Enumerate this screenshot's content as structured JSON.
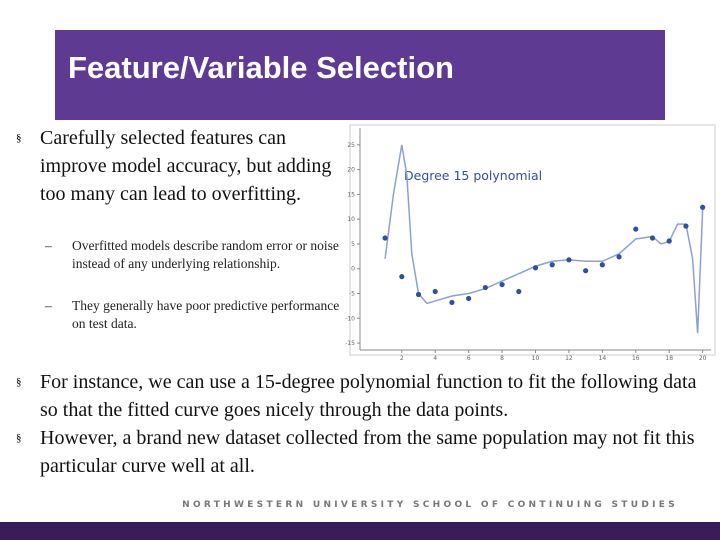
{
  "header": {
    "title": "Feature/Variable Selection"
  },
  "bullets": [
    {
      "text": "Carefully selected features can improve model accuracy, but adding too many can lead to overfitting.",
      "sub": [
        "Overfitted models describe random error or noise instead of any underlying relationship.",
        "They generally have poor predictive performance on test data."
      ]
    },
    {
      "text": "For instance, we can use a 15-degree polynomial function to fit the following data so that the fitted curve goes nicely through the data points."
    },
    {
      "text": "However, a brand new dataset collected from the same population may not fit this particular curve well at all."
    }
  ],
  "figure": {
    "type": "scatter",
    "title": "Degree 15 polynomial",
    "x": [
      1,
      2,
      3,
      4,
      5,
      6,
      7,
      8,
      9,
      10,
      11,
      12,
      13,
      14,
      15,
      16,
      17,
      18,
      19,
      20
    ],
    "values": [
      6.2,
      -1.6,
      -5.2,
      -4.6,
      -6.8,
      -6,
      -3.8,
      -3.2,
      -4.6,
      0.2,
      0.8,
      1.8,
      -0.4,
      0.8,
      2.4,
      8,
      6.2,
      5.6,
      8.6,
      12.4
    ],
    "curve": {
      "x": [
        1,
        1.5,
        2,
        2.3,
        2.6,
        3,
        3.5,
        4,
        5,
        6,
        7,
        8,
        9,
        10,
        11,
        12,
        13,
        14,
        15,
        16,
        17,
        17.5,
        18,
        18.5,
        19,
        19.4,
        19.7,
        20
      ],
      "y": [
        2,
        15,
        25,
        19,
        3,
        -5,
        -7,
        -6.5,
        -5.5,
        -5,
        -4,
        -2.5,
        -1,
        0.5,
        1.5,
        1.8,
        1.5,
        1.5,
        3,
        6,
        6.5,
        5,
        5.5,
        9,
        9,
        2,
        -13,
        12
      ]
    },
    "color": "#2f4fa0",
    "xlim": [
      -0.5,
      20.5
    ],
    "ylim": [
      -16.4,
      28.4
    ],
    "xticks": [
      2,
      4,
      6,
      8,
      10,
      12,
      14,
      16,
      18,
      20
    ],
    "yticks": [
      -15,
      -10,
      -5,
      0,
      5,
      10,
      15,
      20,
      25
    ]
  },
  "footer": "NORTHWESTERN UNIVERSITY SCHOOL OF CONTINUING STUDIES"
}
